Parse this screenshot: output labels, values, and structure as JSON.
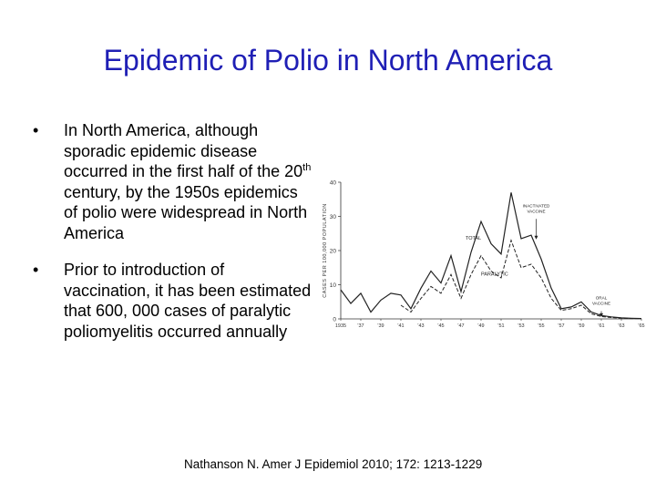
{
  "slide": {
    "title": "Epidemic of Polio in North America",
    "title_color": "#1f1fb5",
    "bullets": [
      {
        "icon": "bullet-dot",
        "text_before_sup": "In North America, although sporadic epidemic disease occurred in the first half of the 20",
        "sup": "th",
        "text_after_sup": " century, by the 1950s epidemics of polio were widespread in North America"
      },
      {
        "icon": "bullet-dot",
        "text": "Prior to introduction of vaccination, it has been estimated that 600, 000 cases of paralytic poliomyelitis occurred annually"
      }
    ],
    "citation": "Nathanson N. Amer J Epidemiol 2010; 172: 1213-1229"
  },
  "chart_data": {
    "type": "line",
    "xlabel": "",
    "ylabel": "CASES PER 100,000 POPULATION",
    "ylim": [
      0,
      40
    ],
    "yticks": [
      0,
      10,
      20,
      30,
      40
    ],
    "xlim": [
      1935,
      1965
    ],
    "xtick_labels": [
      "1935",
      "'37",
      "'39",
      "'41",
      "'43",
      "'45",
      "'47",
      "'49",
      "'51",
      "'53",
      "'55",
      "'57",
      "'59",
      "'61",
      "'63",
      "'65"
    ],
    "x": [
      1935,
      1936,
      1937,
      1938,
      1939,
      1940,
      1941,
      1942,
      1943,
      1944,
      1945,
      1946,
      1947,
      1948,
      1949,
      1950,
      1951,
      1952,
      1953,
      1954,
      1955,
      1956,
      1957,
      1958,
      1959,
      1960,
      1961,
      1962,
      1963,
      1964,
      1965
    ],
    "series": [
      {
        "name": "TOTAL",
        "style": "solid",
        "values": [
          8.5,
          4.5,
          7.5,
          2,
          5.5,
          7.5,
          7,
          3,
          9,
          14,
          10.5,
          18.5,
          8,
          19.5,
          28.5,
          22,
          19,
          37,
          23.5,
          24.5,
          17.5,
          9,
          3,
          3.5,
          5,
          2,
          1,
          0.6,
          0.3,
          0.2,
          0.1
        ]
      },
      {
        "name": "PARALYTIC",
        "style": "dashed",
        "values": [
          null,
          null,
          null,
          null,
          null,
          null,
          4,
          2,
          6,
          9.5,
          7.5,
          13,
          6,
          13,
          18.5,
          14,
          12,
          23,
          15,
          16,
          12,
          6,
          2.5,
          3,
          4,
          1.5,
          0.7,
          0.4,
          0.2,
          0.1,
          0.1
        ]
      }
    ],
    "annotations": [
      {
        "text_lines": [
          "INACTIVATED",
          "VACCINE"
        ],
        "x": 1954.5,
        "y": 29
      },
      {
        "text_lines": [
          "ORAL",
          "VACCINE"
        ],
        "x": 1961,
        "y": 2
      }
    ]
  }
}
